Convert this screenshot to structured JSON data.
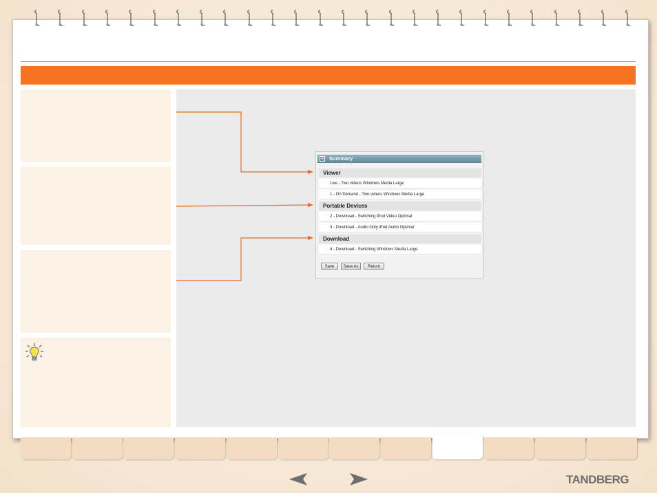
{
  "brand": {
    "logo_text": "TANDBERG",
    "accent": "#f47320"
  },
  "summary_panel": {
    "header": "Summary",
    "toggle": "–",
    "sections": [
      {
        "title": "Viewer",
        "rows": [
          "Live - Two videos Windows Media Large",
          "1 - On Demand - Two videos Windows Media Large"
        ]
      },
      {
        "title": "Portable Devices",
        "rows": [
          "2 - Download - Switching iPod Video Optimal",
          "3 - Download - Audio Only iPod Audio Optimal"
        ]
      },
      {
        "title": "Download",
        "rows": [
          "4 - Download - Switching Windows Media Large"
        ]
      }
    ],
    "buttons": {
      "save": "Save",
      "save_as": "Save As",
      "return": "Return"
    }
  },
  "navigation": {
    "prev_icon": "left-arrow-icon",
    "next_icon": "right-arrow-icon"
  },
  "tabs": {
    "count": 12,
    "active_index": 8
  },
  "tip_icon": "lightbulb-icon"
}
